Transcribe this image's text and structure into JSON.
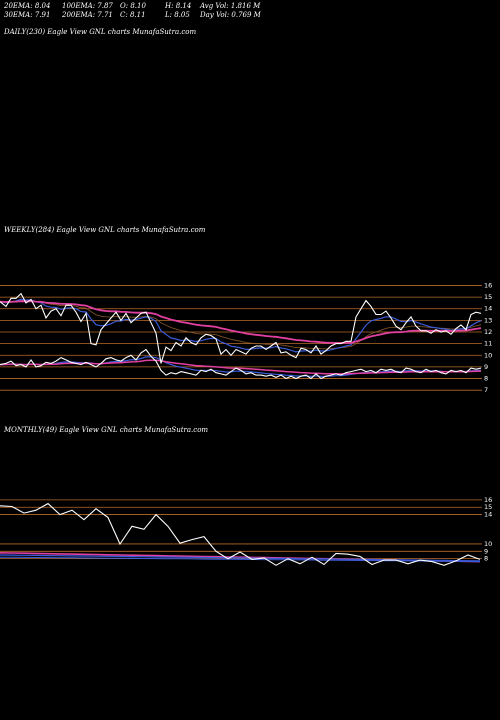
{
  "header": {
    "ema20": "20EMA: 8.04",
    "ema100": "100EMA: 7.87",
    "open": "O: 8.10",
    "high": "H: 8.14",
    "avg_vol": "Avg Vol: 1.816  M",
    "ema30": "30EMA: 7.91",
    "ema200": "200EMA: 7.71",
    "close": "C: 8.11",
    "low": "L: 8.05",
    "day_vol": "Day Vol: 0.769 M"
  },
  "colors": {
    "price": "#ffffff",
    "ema_blue": "#3a5bd8",
    "ema_pink": "#e040a0",
    "ema_brown": "#8a5a2a",
    "grid_orange": "#b86a2a"
  },
  "chart_data": [
    {
      "type": "line",
      "title": "DAILY(230) Eagle  View  GNL  charts MunafaSutra.com",
      "series": [],
      "grid": false
    },
    {
      "type": "line",
      "title": "WEEKLY(284) Eagle  View  GNL  charts MunafaSutra.com",
      "levels": [
        9,
        16,
        15,
        14,
        13,
        12,
        11,
        10,
        8,
        7
      ],
      "level_labels": [
        "9",
        "16",
        "15",
        "14",
        "13",
        "12",
        "11",
        "10",
        "8",
        "7"
      ],
      "x": [
        0,
        6,
        11,
        16,
        21,
        26,
        31,
        36,
        41,
        46,
        51,
        56,
        61,
        66,
        71,
        76,
        81,
        86,
        91,
        96,
        101,
        106,
        111,
        116,
        121,
        126,
        131,
        136,
        141,
        146,
        151,
        156,
        161,
        166,
        171,
        176,
        181,
        186,
        191,
        196,
        201,
        206,
        211,
        216,
        221,
        226,
        231,
        236,
        241,
        246,
        251,
        256,
        261,
        266,
        271,
        276,
        281,
        286,
        291,
        296,
        301,
        306,
        311,
        316,
        321,
        326,
        331,
        336,
        341,
        346,
        351,
        356,
        361,
        366,
        371,
        376,
        381,
        386,
        391,
        396,
        401,
        406,
        411,
        416,
        421,
        426,
        431,
        436,
        441,
        446,
        451,
        456,
        461,
        466,
        471,
        476,
        481
      ],
      "price": [
        14.6,
        14.2,
        14.9,
        14.9,
        15.3,
        14.5,
        14.8,
        14.0,
        14.3,
        13.2,
        13.8,
        14.0,
        13.4,
        14.3,
        14.3,
        13.7,
        12.9,
        13.6,
        11.0,
        10.9,
        12.2,
        12.7,
        13.2,
        13.7,
        13.0,
        13.6,
        12.8,
        13.2,
        13.6,
        13.7,
        12.8,
        11.9,
        9.3,
        10.7,
        10.4,
        11.1,
        10.8,
        11.5,
        11.1,
        10.9,
        11.5,
        11.8,
        11.7,
        11.4,
        10.1,
        10.5,
        10.0,
        10.5,
        10.3,
        10.1,
        10.6,
        10.8,
        10.8,
        10.5,
        10.8,
        11.1,
        10.2,
        10.3,
        10.0,
        9.8,
        10.6,
        10.5,
        10.2,
        10.8,
        10.1,
        10.4,
        10.8,
        11.0,
        11.0,
        11.2,
        11.2,
        13.3,
        14.0,
        14.7,
        14.2,
        13.5,
        13.5,
        13.8,
        13.2,
        12.5,
        12.2,
        12.8,
        13.3,
        12.5,
        12.1,
        12.1,
        11.9,
        12.2,
        12.0,
        12.1,
        11.8,
        12.3,
        12.6,
        12.2,
        13.5,
        13.7,
        13.6
      ],
      "price2": [
        9.2,
        9.3,
        9.5,
        9.1,
        9.2,
        9.0,
        9.6,
        9.0,
        9.1,
        9.4,
        9.3,
        9.5,
        9.8,
        9.6,
        9.4,
        9.3,
        9.2,
        9.4,
        9.2,
        9.0,
        9.3,
        9.7,
        9.8,
        9.6,
        9.5,
        9.8,
        10.0,
        9.6,
        10.2,
        10.5,
        9.9,
        9.5,
        8.7,
        8.3,
        8.5,
        8.4,
        8.6,
        8.5,
        8.4,
        8.3,
        8.7,
        8.6,
        8.8,
        8.5,
        8.4,
        8.3,
        8.6,
        8.9,
        8.7,
        8.4,
        8.5,
        8.3,
        8.3,
        8.2,
        8.3,
        8.1,
        8.3,
        8.0,
        8.2,
        8.0,
        8.2,
        8.3,
        8.0,
        8.4,
        8.0,
        8.2,
        8.3,
        8.4,
        8.3,
        8.5,
        8.6,
        8.7,
        8.8,
        8.6,
        8.7,
        8.5,
        8.8,
        8.7,
        8.8,
        8.6,
        8.5,
        8.9,
        8.8,
        8.6,
        8.5,
        8.8,
        8.6,
        8.7,
        8.5,
        8.4,
        8.7,
        8.6,
        8.7,
        8.5,
        8.9,
        8.8,
        8.9
      ]
    },
    {
      "type": "line",
      "title": "MONTHLY(49) Eagle  View  GNL  charts MunafaSutra.com",
      "levels": [
        16,
        15,
        14,
        10,
        9,
        8
      ],
      "level_labels": [
        "16",
        "15",
        "14",
        "10",
        "9",
        "8"
      ],
      "x": [
        0,
        12,
        24,
        36,
        48,
        60,
        72,
        84,
        96,
        108,
        120,
        132,
        144,
        156,
        168,
        180,
        192,
        204,
        216,
        228,
        240,
        252,
        264,
        276,
        288,
        300,
        312,
        324,
        336,
        348,
        360,
        372,
        384,
        396,
        408,
        420,
        432,
        444,
        456,
        468,
        480
      ],
      "price": [
        15.2,
        15.1,
        14.2,
        14.6,
        15.5,
        14.0,
        14.6,
        13.3,
        14.8,
        13.6,
        10.0,
        12.4,
        12.0,
        14.0,
        12.4,
        10.1,
        10.6,
        11.0,
        9.0,
        8.0,
        8.9,
        7.9,
        8.1,
        7.1,
        8.0,
        7.3,
        8.2,
        7.2,
        8.7,
        8.6,
        8.3,
        7.2,
        7.8,
        7.8,
        7.3,
        7.8,
        7.6,
        7.1,
        7.7,
        8.5,
        7.9
      ]
    }
  ]
}
